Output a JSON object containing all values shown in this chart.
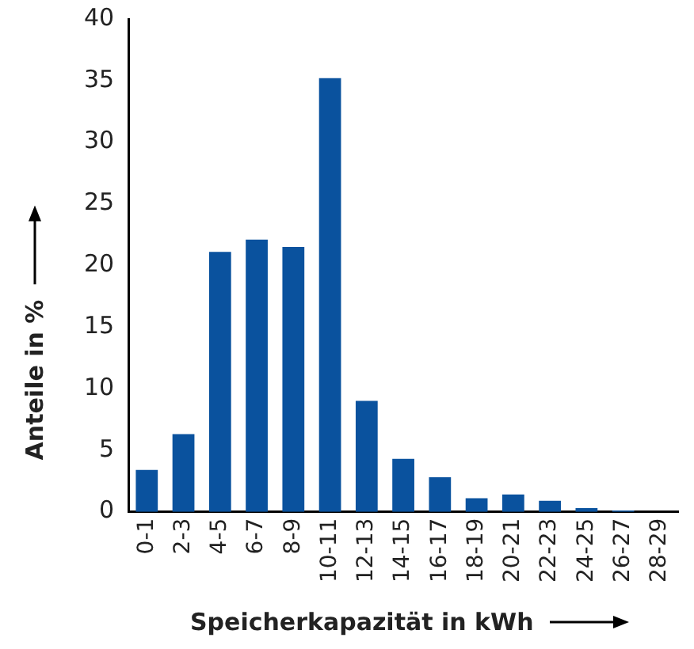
{
  "chart_data": {
    "type": "bar",
    "xlabel": "Speicherkapazität in kWh",
    "ylabel": "Anteile in %",
    "categories": [
      "0-1",
      "2-3",
      "4-5",
      "6-7",
      "8-9",
      "10-11",
      "12-13",
      "14-15",
      "16-17",
      "18-19",
      "20-21",
      "22-23",
      "24-25",
      "26-27",
      "28-29"
    ],
    "values": [
      3.4,
      6.3,
      21.1,
      22.1,
      21.5,
      35.2,
      9.0,
      4.3,
      2.8,
      1.1,
      1.4,
      0.9,
      0.3,
      0.1,
      0
    ],
    "color": "#0a529e",
    "ylim": [
      0,
      40
    ],
    "yticks": [
      0,
      5,
      10,
      15,
      20,
      25,
      30,
      35,
      40
    ],
    "grid": false,
    "legend": false
  }
}
